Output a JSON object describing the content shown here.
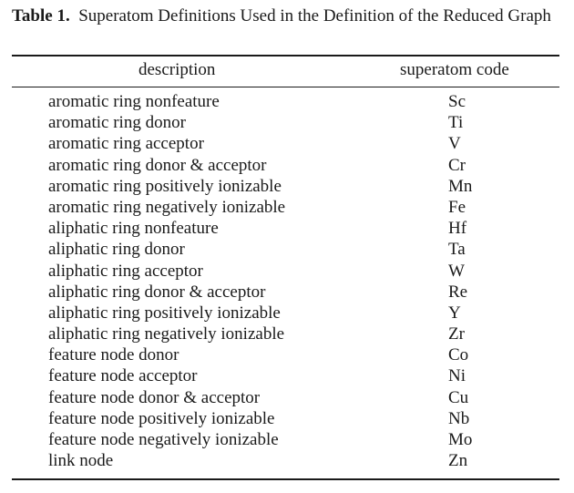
{
  "caption": {
    "label": "Table 1.",
    "text": "Superatom Definitions Used in the Definition of the Reduced Graph"
  },
  "table": {
    "columns": [
      "description",
      "superatom code"
    ],
    "rows": [
      {
        "description": "aromatic ring nonfeature",
        "code": "Sc"
      },
      {
        "description": "aromatic ring donor",
        "code": "Ti"
      },
      {
        "description": "aromatic ring acceptor",
        "code": "V"
      },
      {
        "description": "aromatic ring donor & acceptor",
        "code": "Cr"
      },
      {
        "description": "aromatic ring positively ionizable",
        "code": "Mn"
      },
      {
        "description": "aromatic ring negatively ionizable",
        "code": "Fe"
      },
      {
        "description": "aliphatic ring nonfeature",
        "code": "Hf"
      },
      {
        "description": "aliphatic ring donor",
        "code": "Ta"
      },
      {
        "description": "aliphatic ring acceptor",
        "code": "W"
      },
      {
        "description": "aliphatic ring donor & acceptor",
        "code": "Re"
      },
      {
        "description": "aliphatic ring positively ionizable",
        "code": "Y"
      },
      {
        "description": "aliphatic ring negatively ionizable",
        "code": "Zr"
      },
      {
        "description": "feature node donor",
        "code": "Co"
      },
      {
        "description": "feature node acceptor",
        "code": "Ni"
      },
      {
        "description": "feature node donor & acceptor",
        "code": "Cu"
      },
      {
        "description": "feature node positively ionizable",
        "code": "Nb"
      },
      {
        "description": "feature node negatively ionizable",
        "code": "Mo"
      },
      {
        "description": "link node",
        "code": "Zn"
      }
    ]
  }
}
